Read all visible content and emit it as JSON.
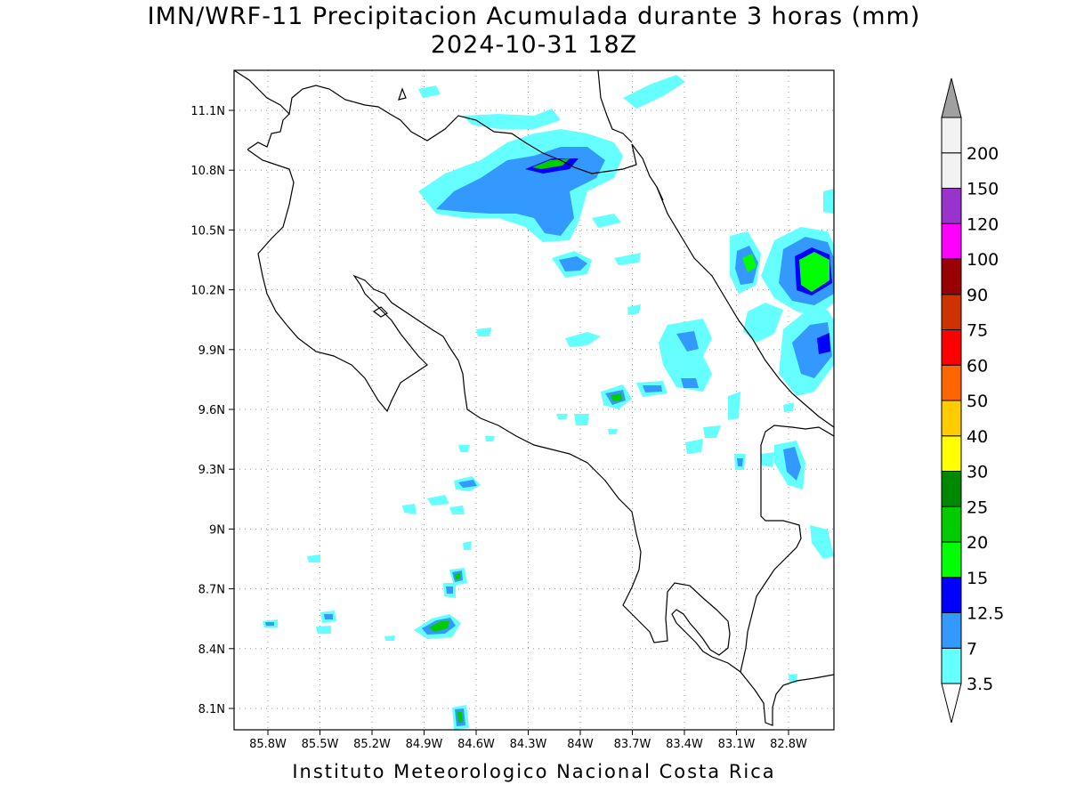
{
  "title": {
    "line1": "IMN/WRF-11 Precipitacion Acumulada durante 3 horas (mm)",
    "line2": "2024-10-31 18Z"
  },
  "credit": "Instituto Meteorologico Nacional Costa Rica",
  "axes": {
    "lat_ticks": [
      "11.1N",
      "10.8N",
      "10.5N",
      "10.2N",
      "9.9N",
      "9.6N",
      "9.3N",
      "9N",
      "8.7N",
      "8.4N",
      "8.1N"
    ],
    "lon_ticks": [
      "85.8W",
      "85.5W",
      "85.2W",
      "84.9W",
      "84.6W",
      "84.3W",
      "84W",
      "83.7W",
      "83.4W",
      "83.1W",
      "82.8W"
    ],
    "grid": "dotted"
  },
  "colorbar": {
    "levels": [
      "3.5",
      "7",
      "12.5",
      "15",
      "20",
      "25",
      "30",
      "40",
      "50",
      "60",
      "75",
      "90",
      "100",
      "120",
      "150",
      "200"
    ],
    "colors": [
      "#66ffff",
      "#3399ff",
      "#0000ff",
      "#00ff00",
      "#00cc00",
      "#008800",
      "#ffff00",
      "#ffcc00",
      "#ff6600",
      "#ff0000",
      "#cc3300",
      "#990000",
      "#ff00ff",
      "#9933cc",
      "#f2f2f2",
      "#a0a0a0"
    ],
    "under_color": "#ffffff"
  }
}
